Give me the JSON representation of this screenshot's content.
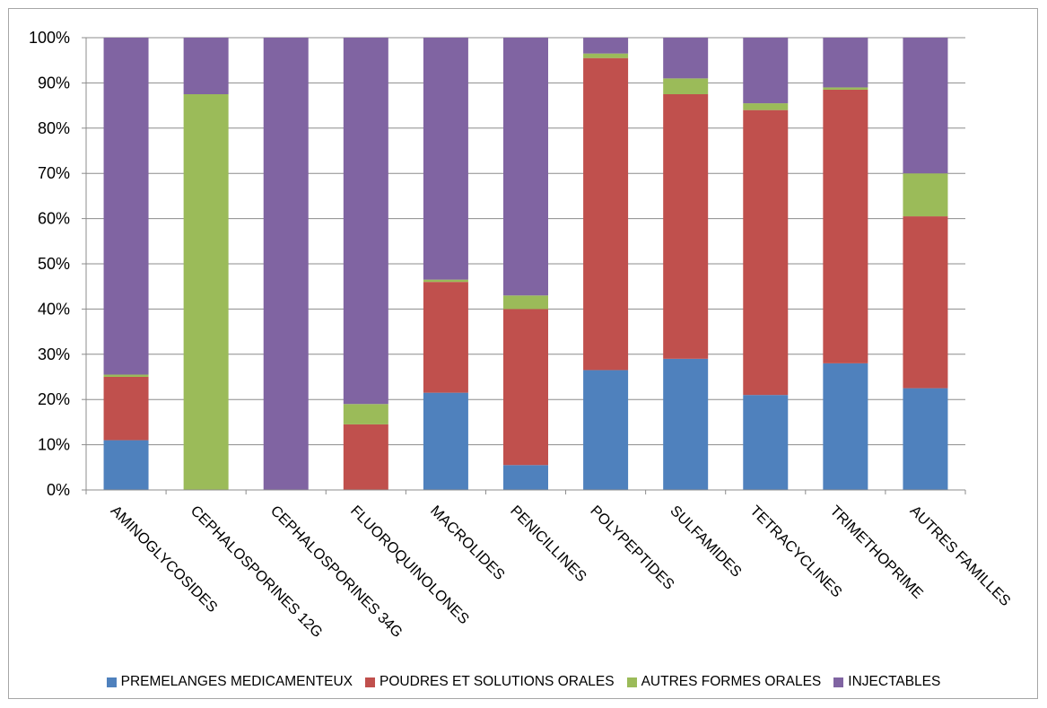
{
  "chart_data": {
    "type": "bar",
    "stacked": true,
    "percent_stacked": true,
    "categories": [
      "AMINOGLYCOSIDES",
      "CEPHALOSPORINES 12G",
      "CEPHALOSPORINES 34G",
      "FLUOROQUINOLONES",
      "MACROLIDES",
      "PENICILLINES",
      "POLYPEPTIDES",
      "SULFAMIDES",
      "TETRACYCLINES",
      "TRIMETHOPRIME",
      "AUTRES FAMILLES"
    ],
    "series": [
      {
        "name": "PREMELANGES MEDICAMENTEUX",
        "color": "#4F81BD",
        "values": [
          11,
          0,
          0,
          0,
          21.5,
          5.5,
          26.5,
          29,
          21,
          28,
          22.5
        ]
      },
      {
        "name": "POUDRES ET SOLUTIONS ORALES",
        "color": "#C0504D",
        "values": [
          14,
          0,
          0,
          14.5,
          24.5,
          34.5,
          69,
          58.5,
          63,
          60.5,
          38
        ]
      },
      {
        "name": "AUTRES FORMES ORALES",
        "color": "#9BBB59",
        "values": [
          0.5,
          87.5,
          0,
          4.5,
          0.5,
          3,
          1,
          3.5,
          1.5,
          0.5,
          9.5
        ]
      },
      {
        "name": "INJECTABLES",
        "color": "#8064A2",
        "values": [
          74.5,
          12.5,
          100,
          81,
          53.5,
          57,
          3.5,
          9,
          14.5,
          11,
          30
        ]
      }
    ],
    "ylim": [
      0,
      100
    ],
    "yticks": [
      "0%",
      "10%",
      "20%",
      "30%",
      "40%",
      "50%",
      "60%",
      "70%",
      "80%",
      "90%",
      "100%"
    ],
    "title": "",
    "xlabel": "",
    "ylabel": "",
    "grid": true,
    "legend_position": "bottom"
  }
}
